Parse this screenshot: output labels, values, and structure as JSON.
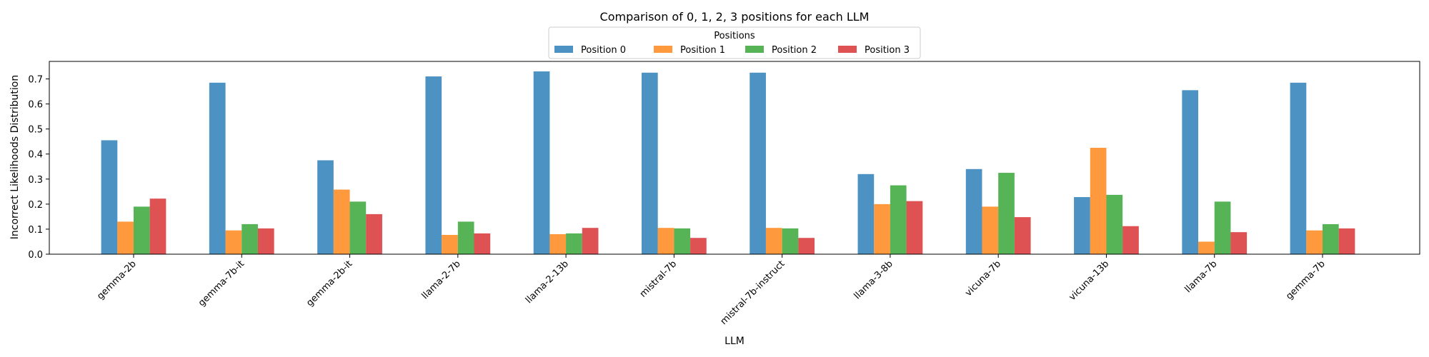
{
  "chart_data": {
    "type": "bar",
    "title": "Comparison of 0, 1, 2, 3 positions for each LLM",
    "xlabel": "LLM",
    "ylabel": "Incorrect Likelihoods Distribution",
    "ylim": [
      0,
      0.77
    ],
    "yticks": [
      0.0,
      0.1,
      0.2,
      0.3,
      0.4,
      0.5,
      0.6,
      0.7
    ],
    "grid": false,
    "legend": {
      "title": "Positions",
      "placement": "top-center",
      "columns": 4
    },
    "categories": [
      "gemma-2b",
      "gemma-7b-it",
      "gemma-2b-it",
      "llama-2-7b",
      "llama-2-13b",
      "mistral-7b",
      "mistral-7b-instruct",
      "llama-3-8b",
      "vicuna-7b",
      "vicuna-13b",
      "llama-7b",
      "gemma-7b"
    ],
    "series": [
      {
        "name": "Position 0",
        "color": "#1f77b4",
        "values": [
          0.455,
          0.685,
          0.375,
          0.71,
          0.73,
          0.725,
          0.725,
          0.32,
          0.34,
          0.228,
          0.655,
          0.685
        ]
      },
      {
        "name": "Position 1",
        "color": "#ff7f0e",
        "values": [
          0.13,
          0.095,
          0.258,
          0.077,
          0.08,
          0.105,
          0.105,
          0.2,
          0.19,
          0.425,
          0.05,
          0.095
        ]
      },
      {
        "name": "Position 2",
        "color": "#2ca02c",
        "values": [
          0.19,
          0.12,
          0.21,
          0.13,
          0.083,
          0.103,
          0.103,
          0.275,
          0.325,
          0.237,
          0.21,
          0.12
        ]
      },
      {
        "name": "Position 3",
        "color": "#d62728",
        "values": [
          0.222,
          0.103,
          0.16,
          0.083,
          0.105,
          0.065,
          0.065,
          0.212,
          0.148,
          0.112,
          0.088,
          0.103
        ]
      }
    ]
  }
}
